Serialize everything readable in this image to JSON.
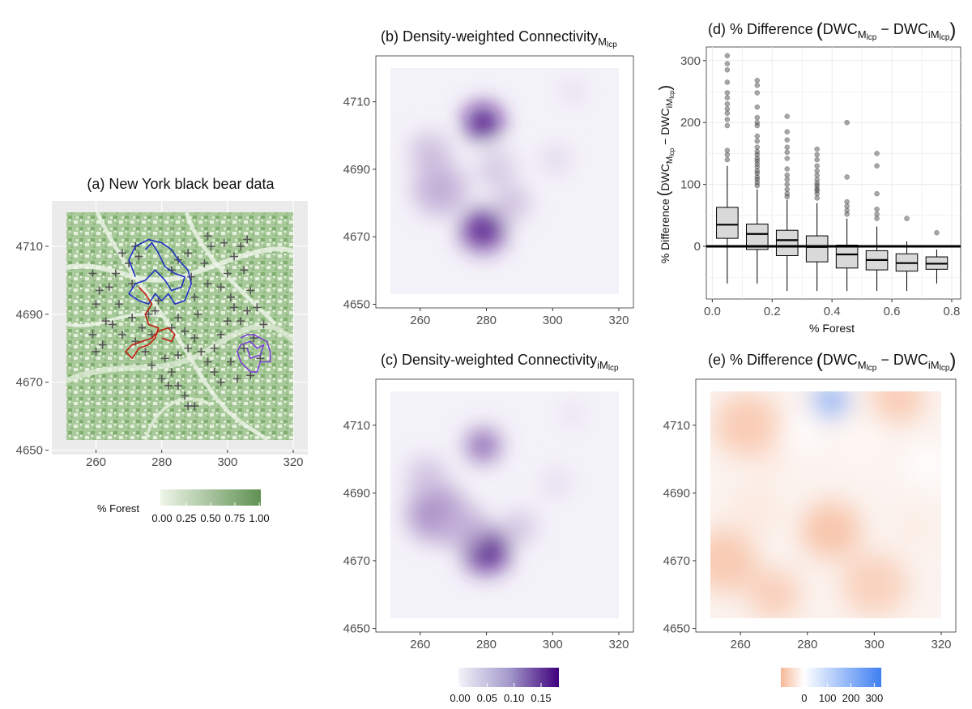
{
  "chart_data": [
    {
      "id": "a",
      "type": "heatmap",
      "title": "(a) New York black bear data",
      "x_ticks": [
        "260",
        "280",
        "300",
        "320"
      ],
      "y_ticks": [
        "4650",
        "4670",
        "4690",
        "4710"
      ],
      "xlim": [
        250,
        322
      ],
      "ylim": [
        4647,
        4723
      ],
      "raster_extent": {
        "x": [
          251,
          320
        ],
        "y": [
          4653,
          4720
        ]
      },
      "legend": {
        "title": "% Forest",
        "ticks": [
          "0.00",
          "0.25",
          "0.50",
          "0.75",
          "1.00"
        ],
        "colors": [
          "#eef5e8",
          "#5f9152"
        ]
      },
      "survey_sites": [
        [
          259,
          4702
        ],
        [
          261,
          4697
        ],
        [
          260,
          4693
        ],
        [
          263,
          4688
        ],
        [
          259,
          4684
        ],
        [
          262,
          4681
        ],
        [
          260,
          4679
        ],
        [
          264,
          4698
        ],
        [
          266,
          4702
        ],
        [
          268,
          4708
        ],
        [
          270,
          4705
        ],
        [
          272,
          4710
        ],
        [
          273,
          4707
        ],
        [
          271,
          4699
        ],
        [
          267,
          4693
        ],
        [
          265,
          4687
        ],
        [
          268,
          4684
        ],
        [
          271,
          4689
        ],
        [
          274,
          4686
        ],
        [
          272,
          4682
        ],
        [
          275,
          4679
        ],
        [
          277,
          4684
        ],
        [
          276,
          4690
        ],
        [
          279,
          4694
        ],
        [
          277,
          4675
        ],
        [
          281,
          4677
        ],
        [
          283,
          4673
        ],
        [
          280,
          4671
        ],
        [
          285,
          4678
        ],
        [
          288,
          4680
        ],
        [
          287,
          4685
        ],
        [
          283,
          4686
        ],
        [
          285,
          4689
        ],
        [
          283,
          4703
        ],
        [
          285,
          4706
        ],
        [
          288,
          4708
        ],
        [
          289,
          4701
        ],
        [
          290,
          4695
        ],
        [
          291,
          4690
        ],
        [
          290,
          4683
        ],
        [
          292,
          4679
        ],
        [
          294,
          4676
        ],
        [
          296,
          4673
        ],
        [
          298,
          4670
        ],
        [
          296,
          4680
        ],
        [
          298,
          4684
        ],
        [
          300,
          4688
        ],
        [
          302,
          4692
        ],
        [
          298,
          4698
        ],
        [
          300,
          4702
        ],
        [
          302,
          4707
        ],
        [
          304,
          4710
        ],
        [
          306,
          4712
        ],
        [
          305,
          4703
        ],
        [
          307,
          4697
        ],
        [
          306,
          4691
        ],
        [
          304,
          4688
        ],
        [
          301,
          4676
        ],
        [
          303,
          4671
        ],
        [
          285,
          4669
        ],
        [
          287,
          4666
        ],
        [
          288,
          4663
        ],
        [
          290,
          4663
        ],
        [
          282,
          4669
        ],
        [
          278,
          4691
        ],
        [
          294,
          4713
        ],
        [
          295,
          4710
        ],
        [
          293,
          4705
        ],
        [
          294,
          4699
        ],
        [
          299,
          4711
        ],
        [
          301,
          4695
        ],
        [
          308,
          4683
        ],
        [
          310,
          4677
        ],
        [
          305,
          4680
        ],
        [
          311,
          4687
        ],
        [
          309,
          4692
        ],
        [
          307,
          4672
        ]
      ],
      "tracks": [
        {
          "color": "#1f2fc4",
          "points": [
            [
              272,
              4701
            ],
            [
              270,
              4706
            ],
            [
              272,
              4710
            ],
            [
              276,
              4712
            ],
            [
              280,
              4711
            ],
            [
              283,
              4709
            ],
            [
              285,
              4706
            ],
            [
              288,
              4703
            ],
            [
              289,
              4699
            ],
            [
              287,
              4694
            ],
            [
              284,
              4693
            ],
            [
              282,
              4696
            ],
            [
              280,
              4694
            ],
            [
              278,
              4696
            ],
            [
              276,
              4693
            ],
            [
              273,
              4694
            ],
            [
              270,
              4696
            ],
            [
              272,
              4699
            ],
            [
              275,
              4700
            ],
            [
              278,
              4703
            ],
            [
              281,
              4700
            ],
            [
              283,
              4697
            ],
            [
              286,
              4698
            ],
            [
              287,
              4701
            ],
            [
              284,
              4702
            ],
            [
              281,
              4704
            ],
            [
              279,
              4708
            ],
            [
              277,
              4711
            ],
            [
              275,
              4709
            ]
          ]
        },
        {
          "color": "#c21b0f",
          "points": [
            [
              273,
              4698
            ],
            [
              275,
              4696
            ],
            [
              277,
              4693
            ],
            [
              275,
              4690
            ],
            [
              276,
              4687
            ],
            [
              279,
              4686
            ],
            [
              278,
              4683
            ],
            [
              276,
              4681
            ],
            [
              273,
              4680
            ],
            [
              271,
              4677
            ],
            [
              269,
              4679
            ],
            [
              271,
              4681
            ],
            [
              274,
              4682
            ],
            [
              277,
              4683
            ],
            [
              279,
              4685
            ],
            [
              282,
              4686
            ],
            [
              284,
              4684
            ],
            [
              283,
              4682
            ],
            [
              280,
              4683
            ]
          ]
        },
        {
          "color": "#7a3dd6",
          "points": [
            [
              304,
              4683
            ],
            [
              306,
              4684
            ],
            [
              308,
              4684
            ],
            [
              310,
              4683
            ],
            [
              312,
              4682
            ],
            [
              313,
              4679
            ],
            [
              313,
              4676
            ],
            [
              310,
              4676
            ],
            [
              309,
              4673
            ],
            [
              307,
              4673
            ],
            [
              304,
              4676
            ],
            [
              303,
              4679
            ],
            [
              304,
              4681
            ],
            [
              307,
              4682
            ],
            [
              309,
              4680
            ],
            [
              311,
              4681
            ],
            [
              310,
              4678
            ],
            [
              307,
              4677
            ],
            [
              306,
              4680
            ]
          ]
        }
      ]
    },
    {
      "id": "b",
      "type": "heatmap",
      "title": "(b) Density-weighted Connectivity",
      "title_sub": "M",
      "title_subsub": "lcp",
      "x_ticks": [
        "260",
        "280",
        "300",
        "320"
      ],
      "y_ticks": [
        "4650",
        "4670",
        "4690",
        "4710"
      ],
      "xlim": [
        250,
        322
      ],
      "ylim": [
        4647,
        4723
      ],
      "raster_extent": {
        "x": [
          251,
          320
        ],
        "y": [
          4653,
          4720
        ]
      },
      "hotspots": [
        {
          "x": 279,
          "y": 4704,
          "r": 5.5,
          "v": 0.17
        },
        {
          "x": 279,
          "y": 4672,
          "r": 6.5,
          "v": 0.15
        },
        {
          "x": 266,
          "y": 4684,
          "r": 8.0,
          "v": 0.05
        },
        {
          "x": 263,
          "y": 4695,
          "r": 6.0,
          "v": 0.04
        },
        {
          "x": 288,
          "y": 4680,
          "r": 5.0,
          "v": 0.04
        },
        {
          "x": 301,
          "y": 4693,
          "r": 4.0,
          "v": 0.025
        },
        {
          "x": 283,
          "y": 4690,
          "r": 6.0,
          "v": 0.03
        },
        {
          "x": 306,
          "y": 4713,
          "r": 4.0,
          "v": 0.015
        }
      ]
    },
    {
      "id": "c",
      "type": "heatmap",
      "title": "(c) Density-weighted Connectivity",
      "title_sub": "iM",
      "title_subsub": "lcp",
      "x_ticks": [
        "260",
        "280",
        "300",
        "320"
      ],
      "y_ticks": [
        "4650",
        "4670",
        "4690",
        "4710"
      ],
      "xlim": [
        250,
        322
      ],
      "ylim": [
        4647,
        4723
      ],
      "raster_extent": {
        "x": [
          251,
          320
        ],
        "y": [
          4653,
          4720
        ]
      },
      "legend": {
        "ticks": [
          "0.00",
          "0.05",
          "0.10",
          "0.15"
        ],
        "max": 0.18,
        "colors": [
          "#f4f2f9",
          "#3f007d"
        ]
      },
      "hotspots": [
        {
          "x": 280,
          "y": 4673,
          "r": 7.0,
          "v": 0.15
        },
        {
          "x": 279,
          "y": 4704,
          "r": 5.0,
          "v": 0.11
        },
        {
          "x": 265,
          "y": 4684,
          "r": 9.0,
          "v": 0.07
        },
        {
          "x": 273,
          "y": 4680,
          "r": 7.0,
          "v": 0.05
        },
        {
          "x": 262,
          "y": 4695,
          "r": 6.0,
          "v": 0.035
        },
        {
          "x": 290,
          "y": 4680,
          "r": 5.0,
          "v": 0.035
        },
        {
          "x": 301,
          "y": 4693,
          "r": 4.0,
          "v": 0.02
        },
        {
          "x": 306,
          "y": 4713,
          "r": 4.0,
          "v": 0.012
        }
      ]
    },
    {
      "id": "d",
      "type": "box",
      "title": "(d) % Difference",
      "xlabel": "% Forest",
      "ylabel": "% Difference",
      "x_ticks": [
        "0.0",
        "0.2",
        "0.4",
        "0.6",
        "0.8"
      ],
      "y_ticks": [
        "0",
        "100",
        "200",
        "300"
      ],
      "xlim": [
        -0.02,
        0.83
      ],
      "ylim": [
        -85,
        322
      ],
      "reference_line": 0,
      "boxes": [
        {
          "x": 0.05,
          "q1": 13,
          "med": 35,
          "q3": 63,
          "wlo": -60,
          "whi": 130,
          "outliers": [
            140,
            148,
            155,
            195,
            205,
            215,
            222,
            230,
            240,
            248,
            265,
            285,
            295,
            308
          ]
        },
        {
          "x": 0.15,
          "q1": -5,
          "med": 20,
          "q3": 36,
          "wlo": -60,
          "whi": 92,
          "outliers": [
            98,
            103,
            108,
            112,
            118,
            122,
            128,
            133,
            138,
            142,
            148,
            153,
            160,
            170,
            178,
            195,
            200,
            208,
            225,
            248,
            260,
            268
          ]
        },
        {
          "x": 0.25,
          "q1": -15,
          "med": 10,
          "q3": 26,
          "wlo": -72,
          "whi": 75,
          "outliers": [
            80,
            85,
            92,
            100,
            108,
            115,
            125,
            142,
            152,
            160,
            172,
            185,
            210
          ]
        },
        {
          "x": 0.35,
          "q1": -25,
          "med": -1,
          "q3": 17,
          "wlo": -72,
          "whi": 70,
          "outliers": [
            78,
            85,
            90,
            93,
            98,
            102,
            108,
            115,
            122,
            130,
            140,
            148,
            157
          ]
        },
        {
          "x": 0.45,
          "q1": -35,
          "med": -13,
          "q3": 2,
          "wlo": -72,
          "whi": 45,
          "outliers": [
            52,
            58,
            65,
            72,
            112,
            200
          ]
        },
        {
          "x": 0.55,
          "q1": -38,
          "med": -22,
          "q3": -7,
          "wlo": -72,
          "whi": 32,
          "outliers": [
            45,
            52,
            60,
            85,
            130,
            150
          ]
        },
        {
          "x": 0.65,
          "q1": -40,
          "med": -27,
          "q3": -12,
          "wlo": -72,
          "whi": 8,
          "outliers": [
            45
          ]
        },
        {
          "x": 0.75,
          "q1": -37,
          "med": -28,
          "q3": -17,
          "wlo": -60,
          "whi": -5,
          "outliers": [
            22
          ]
        }
      ]
    },
    {
      "id": "e",
      "type": "heatmap",
      "title": "(e) % Difference",
      "x_ticks": [
        "260",
        "280",
        "300",
        "320"
      ],
      "y_ticks": [
        "4650",
        "4670",
        "4690",
        "4710"
      ],
      "xlim": [
        250,
        322
      ],
      "ylim": [
        4647,
        4723
      ],
      "raster_extent": {
        "x": [
          251,
          320
        ],
        "y": [
          4653,
          4720
        ]
      },
      "legend": {
        "ticks": [
          "0",
          "100",
          "200",
          "300"
        ],
        "min": -100,
        "max": 330,
        "colors": [
          "#f6b898",
          "#ffffff",
          "#3f7ff2"
        ]
      },
      "hotspots": [
        {
          "x": 287,
          "y": 4717,
          "r": 5.0,
          "v": 260
        },
        {
          "x": 279,
          "y": 4708,
          "r": 6.0,
          "v": 110
        },
        {
          "x": 296,
          "y": 4705,
          "r": 8.0,
          "v": 90
        },
        {
          "x": 316,
          "y": 4698,
          "r": 7.0,
          "v": 110
        },
        {
          "x": 268,
          "y": 4700,
          "r": 6.0,
          "v": 60
        },
        {
          "x": 264,
          "y": 4685,
          "r": 8.0,
          "v": 50
        },
        {
          "x": 312,
          "y": 4680,
          "r": 6.0,
          "v": 60
        },
        {
          "x": 262,
          "y": 4710,
          "r": 10.0,
          "v": -40
        },
        {
          "x": 255,
          "y": 4670,
          "r": 10.0,
          "v": -45
        },
        {
          "x": 287,
          "y": 4679,
          "r": 9.0,
          "v": -60
        },
        {
          "x": 307,
          "y": 4718,
          "r": 8.0,
          "v": -40
        },
        {
          "x": 300,
          "y": 4663,
          "r": 10.0,
          "v": -20
        },
        {
          "x": 270,
          "y": 4660,
          "r": 8.0,
          "v": -30
        }
      ]
    }
  ]
}
